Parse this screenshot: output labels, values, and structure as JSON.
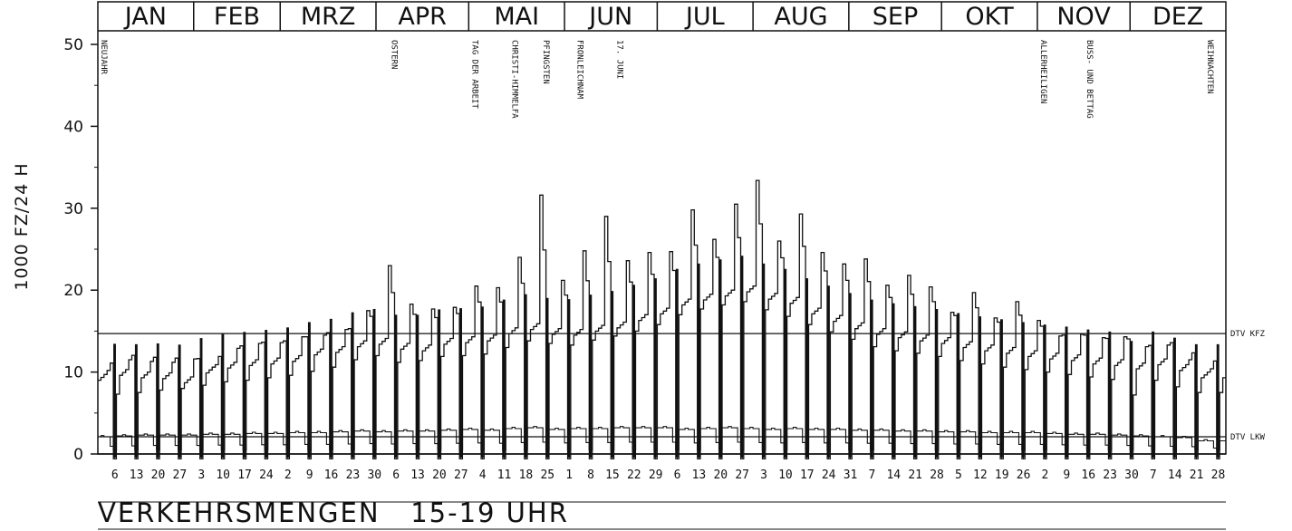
{
  "chart_data": {
    "type": "line",
    "title": "VERKEHRSMENGEN   15-19 UHR",
    "ylabel": "1000 FZ/24 H",
    "ylim": [
      0,
      51
    ],
    "yticks": [
      0,
      10,
      20,
      30,
      40,
      50
    ],
    "months": [
      "JAN",
      "FEB",
      "MRZ",
      "APR",
      "MAI",
      "JUN",
      "JUL",
      "AUG",
      "SEP",
      "OKT",
      "NOV",
      "DEZ"
    ],
    "xtick_labels": [
      "6",
      "13",
      "20",
      "27",
      "3",
      "10",
      "17",
      "24",
      "2",
      "9",
      "16",
      "23",
      "30",
      "6",
      "13",
      "20",
      "27",
      "4",
      "11",
      "18",
      "25",
      "1",
      "8",
      "15",
      "22",
      "29",
      "6",
      "13",
      "20",
      "27",
      "3",
      "10",
      "17",
      "24",
      "31",
      "7",
      "14",
      "21",
      "28",
      "5",
      "12",
      "19",
      "26",
      "2",
      "9",
      "16",
      "23",
      "30",
      "7",
      "14",
      "21",
      "28"
    ],
    "holidays": [
      {
        "label": "NEUJAHR",
        "day": 1
      },
      {
        "label": "OSTERN",
        "day": 95
      },
      {
        "label": "TAG DER ARBEIT",
        "day": 121
      },
      {
        "label": "CHRISTI-HIMMELFA",
        "day": 134
      },
      {
        "label": "PFINGSTEN",
        "day": 144
      },
      {
        "label": "FRONLEICHNAM",
        "day": 155
      },
      {
        "label": "17. JUNI",
        "day": 168
      },
      {
        "label": "ALLERHEILIGEN",
        "day": 305
      },
      {
        "label": "BUSS- UND BETTAG",
        "day": 320
      },
      {
        "label": "WEIHNACHTEN",
        "day": 359
      }
    ],
    "reference_lines": [
      {
        "name": "DTV KFZ",
        "value": 14.7
      },
      {
        "name": "DTV LKW",
        "value": 2.1
      }
    ],
    "weekly_peak_kfz": [
      10.2,
      11.5,
      11.3,
      11.2,
      11.6,
      10.9,
      12.9,
      13.5,
      13.6,
      14.3,
      14.5,
      15.2,
      17.5,
      23.0,
      18.3,
      17.7,
      17.9,
      20.5,
      20.3,
      24.0,
      31.6,
      21.2,
      24.8,
      29.0,
      23.6,
      24.6,
      24.7,
      29.8,
      26.2,
      30.5,
      33.4,
      26.0,
      29.3,
      24.6,
      23.2,
      23.8,
      20.6,
      21.8,
      20.4,
      17.3,
      19.7,
      16.6,
      18.6,
      16.3,
      14.4,
      14.6,
      14.2,
      14.3,
      13.1,
      13.3,
      11.5,
      10.4
    ],
    "weekly_base_kfz": [
      9.0,
      9.6,
      9.3,
      9.2,
      8.7,
      9.9,
      10.5,
      10.8,
      11.0,
      11.3,
      12.1,
      12.4,
      13.1,
      13.4,
      12.8,
      12.6,
      13.4,
      13.6,
      13.8,
      14.7,
      15.2,
      14.6,
      14.5,
      15.0,
      15.4,
      16.3,
      17.1,
      18.2,
      18.8,
      19.3,
      19.8,
      18.9,
      18.4,
      17.1,
      16.2,
      15.3,
      14.6,
      14.2,
      13.8,
      13.5,
      13.0,
      12.6,
      12.3,
      11.9,
      11.6,
      11.4,
      11.0,
      10.8,
      10.4,
      10.9,
      10.2,
      9.3
    ],
    "weekly_low_kfz": [
      7.0,
      7.3,
      7.5,
      7.8,
      8.0,
      8.4,
      8.8,
      9.0,
      9.3,
      9.6,
      10.1,
      10.6,
      11.5,
      12.0,
      11.2,
      11.4,
      11.9,
      12.0,
      12.2,
      13.0,
      13.8,
      13.5,
      13.3,
      13.9,
      14.4,
      15.0,
      15.8,
      17.0,
      17.7,
      18.2,
      18.6,
      17.6,
      16.8,
      15.8,
      14.9,
      14.0,
      13.1,
      12.6,
      12.3,
      11.9,
      11.4,
      11.0,
      10.6,
      10.3,
      10.0,
      9.7,
      9.4,
      9.1,
      7.2,
      9.0,
      8.2,
      7.5
    ],
    "weekly_lkw": [
      2.1,
      2.2,
      2.3,
      2.3,
      2.3,
      2.4,
      2.4,
      2.5,
      2.5,
      2.6,
      2.6,
      2.7,
      2.8,
      2.7,
      2.8,
      2.8,
      2.9,
      3.0,
      2.9,
      3.1,
      3.2,
      3.0,
      3.1,
      3.1,
      3.2,
      3.2,
      3.2,
      3.0,
      3.1,
      3.2,
      3.1,
      3.0,
      3.1,
      3.0,
      3.0,
      2.9,
      2.9,
      2.8,
      2.8,
      2.7,
      2.7,
      2.6,
      2.6,
      2.6,
      2.5,
      2.4,
      2.4,
      2.3,
      2.2,
      2.1,
      2.0,
      1.6
    ]
  }
}
